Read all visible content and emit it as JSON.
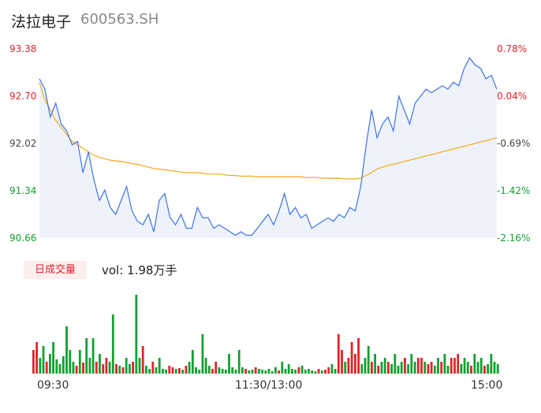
{
  "header": {
    "name": "法拉电子",
    "code": "600563.SH"
  },
  "price_axis": {
    "labels": [
      "93.38",
      "92.70",
      "92.02",
      "91.34",
      "90.66"
    ],
    "min": 90.66,
    "max": 93.38
  },
  "pct_axis": {
    "labels": [
      "0.78%",
      "0.04%",
      "-0.69%",
      "-1.42%",
      "-2.16%"
    ]
  },
  "volume": {
    "tag": "日成交量",
    "text": "vol: 1.98万手"
  },
  "time_axis": {
    "labels": [
      "09:30",
      "11:30/13:00",
      "15:00"
    ]
  },
  "colors": {
    "price": "#3f73e6",
    "avg": "#f4a81c",
    "up": "#e0242b",
    "down": "#12a031",
    "fill": "#eef3fb"
  },
  "chart_data": {
    "type": "line",
    "x_range": [
      "09:30",
      "15:00"
    ],
    "ylim": [
      90.66,
      93.38
    ],
    "series": [
      {
        "values": [
          92.95,
          92.8,
          92.4,
          92.6,
          92.3,
          92.2,
          92.0,
          92.05,
          91.6,
          91.9,
          91.5,
          91.2,
          91.35,
          91.1,
          91.0,
          91.2,
          91.4,
          91.05,
          90.9,
          90.85,
          91.0,
          90.75,
          91.2,
          91.3,
          90.95,
          90.85,
          91.0,
          90.8,
          90.8,
          91.1,
          90.95,
          90.95,
          90.8,
          90.85,
          90.8,
          90.75,
          90.7,
          90.75,
          90.7,
          90.7,
          90.8,
          90.9,
          91.0,
          90.85,
          91.05,
          91.3,
          91.0,
          91.1,
          90.95,
          91.0,
          90.8,
          90.85,
          90.9,
          90.95,
          90.9,
          91.0,
          90.95,
          91.1,
          91.05,
          91.4,
          92.0,
          92.5,
          92.1,
          92.3,
          92.4,
          92.2,
          92.7,
          92.5,
          92.3,
          92.6,
          92.7,
          92.8,
          92.75,
          92.8,
          92.85,
          92.8,
          92.9,
          92.85,
          93.1,
          93.25,
          93.15,
          93.1,
          92.95,
          93.0,
          92.8
        ],
        "color": "#3f73e6"
      },
      {
        "values": [
          92.9,
          92.65,
          92.5,
          92.35,
          92.25,
          92.15,
          92.05,
          92.0,
          91.95,
          91.9,
          91.85,
          91.82,
          91.8,
          91.78,
          91.77,
          91.76,
          91.75,
          91.73,
          91.72,
          91.7,
          91.68,
          91.66,
          91.65,
          91.64,
          91.63,
          91.62,
          91.61,
          91.6,
          91.6,
          91.6,
          91.59,
          91.58,
          91.58,
          91.58,
          91.57,
          91.56,
          91.56,
          91.55,
          91.55,
          91.55,
          91.54,
          91.54,
          91.54,
          91.54,
          91.54,
          91.54,
          91.54,
          91.54,
          91.54,
          91.53,
          91.53,
          91.53,
          91.52,
          91.52,
          91.52,
          91.52,
          91.51,
          91.51,
          91.51,
          91.52,
          91.56,
          91.6,
          91.65,
          91.68,
          91.7,
          91.72,
          91.74,
          91.76,
          91.78,
          91.8,
          91.82,
          91.84,
          91.86,
          91.88,
          91.9,
          91.92,
          91.94,
          91.96,
          91.98,
          92.0,
          92.02,
          92.04,
          92.06,
          92.08,
          92.1
        ],
        "color": "#f4a81c"
      }
    ],
    "volume_bars": [
      [
        30,
        "up"
      ],
      [
        40,
        "up"
      ],
      [
        20,
        "down"
      ],
      [
        35,
        "down"
      ],
      [
        15,
        "up"
      ],
      [
        25,
        "down"
      ],
      [
        40,
        "down"
      ],
      [
        18,
        "down"
      ],
      [
        12,
        "down"
      ],
      [
        22,
        "down"
      ],
      [
        60,
        "down"
      ],
      [
        30,
        "down"
      ],
      [
        15,
        "down"
      ],
      [
        10,
        "up"
      ],
      [
        30,
        "down"
      ],
      [
        14,
        "up"
      ],
      [
        45,
        "down"
      ],
      [
        20,
        "down"
      ],
      [
        45,
        "down"
      ],
      [
        15,
        "up"
      ],
      [
        25,
        "down"
      ],
      [
        12,
        "up"
      ],
      [
        20,
        "up"
      ],
      [
        15,
        "down"
      ],
      [
        75,
        "down"
      ],
      [
        12,
        "up"
      ],
      [
        10,
        "down"
      ],
      [
        8,
        "up"
      ],
      [
        20,
        "down"
      ],
      [
        12,
        "down"
      ],
      [
        15,
        "up"
      ],
      [
        100,
        "down"
      ],
      [
        20,
        "down"
      ],
      [
        35,
        "up"
      ],
      [
        10,
        "down"
      ],
      [
        6,
        "down"
      ],
      [
        15,
        "up"
      ],
      [
        8,
        "down"
      ],
      [
        20,
        "down"
      ],
      [
        6,
        "down"
      ],
      [
        5,
        "down"
      ],
      [
        10,
        "up"
      ],
      [
        8,
        "up"
      ],
      [
        6,
        "down"
      ],
      [
        7,
        "up"
      ],
      [
        5,
        "down"
      ],
      [
        10,
        "up"
      ],
      [
        15,
        "down"
      ],
      [
        30,
        "down"
      ],
      [
        8,
        "down"
      ],
      [
        5,
        "down"
      ],
      [
        50,
        "down"
      ],
      [
        20,
        "down"
      ],
      [
        10,
        "down"
      ],
      [
        6,
        "up"
      ],
      [
        15,
        "up"
      ],
      [
        8,
        "down"
      ],
      [
        6,
        "down"
      ],
      [
        5,
        "down"
      ],
      [
        25,
        "down"
      ],
      [
        8,
        "down"
      ],
      [
        5,
        "down"
      ],
      [
        30,
        "down"
      ],
      [
        8,
        "down"
      ],
      [
        6,
        "up"
      ],
      [
        4,
        "down"
      ],
      [
        5,
        "down"
      ],
      [
        8,
        "up"
      ],
      [
        6,
        "down"
      ],
      [
        5,
        "down"
      ],
      [
        4,
        "down"
      ],
      [
        6,
        "down"
      ],
      [
        3,
        "down"
      ],
      [
        8,
        "down"
      ],
      [
        4,
        "up"
      ],
      [
        15,
        "down"
      ],
      [
        6,
        "down"
      ],
      [
        12,
        "down"
      ],
      [
        6,
        "down"
      ],
      [
        5,
        "down"
      ],
      [
        8,
        "up"
      ],
      [
        10,
        "down"
      ],
      [
        5,
        "down"
      ],
      [
        6,
        "down"
      ],
      [
        4,
        "down"
      ],
      [
        3,
        "down"
      ],
      [
        6,
        "up"
      ],
      [
        4,
        "down"
      ],
      [
        5,
        "up"
      ],
      [
        8,
        "up"
      ],
      [
        12,
        "down"
      ],
      [
        6,
        "down"
      ],
      [
        50,
        "up"
      ],
      [
        30,
        "up"
      ],
      [
        15,
        "down"
      ],
      [
        20,
        "up"
      ],
      [
        40,
        "up"
      ],
      [
        25,
        "up"
      ],
      [
        45,
        "up"
      ],
      [
        12,
        "down"
      ],
      [
        20,
        "down"
      ],
      [
        35,
        "down"
      ],
      [
        15,
        "up"
      ],
      [
        25,
        "down"
      ],
      [
        10,
        "up"
      ],
      [
        15,
        "down"
      ],
      [
        20,
        "down"
      ],
      [
        15,
        "up"
      ],
      [
        12,
        "down"
      ],
      [
        25,
        "down"
      ],
      [
        10,
        "down"
      ],
      [
        15,
        "down"
      ],
      [
        20,
        "up"
      ],
      [
        12,
        "down"
      ],
      [
        25,
        "down"
      ],
      [
        15,
        "down"
      ],
      [
        20,
        "up"
      ],
      [
        20,
        "up"
      ],
      [
        15,
        "down"
      ],
      [
        12,
        "up"
      ],
      [
        15,
        "up"
      ],
      [
        10,
        "down"
      ],
      [
        20,
        "down"
      ],
      [
        15,
        "up"
      ],
      [
        25,
        "down"
      ],
      [
        10,
        "down"
      ],
      [
        20,
        "up"
      ],
      [
        20,
        "up"
      ],
      [
        25,
        "up"
      ],
      [
        12,
        "down"
      ],
      [
        20,
        "down"
      ],
      [
        15,
        "down"
      ],
      [
        10,
        "up"
      ],
      [
        25,
        "down"
      ],
      [
        15,
        "down"
      ],
      [
        20,
        "down"
      ],
      [
        10,
        "up"
      ],
      [
        12,
        "down"
      ],
      [
        25,
        "down"
      ],
      [
        15,
        "down"
      ],
      [
        12,
        "down"
      ]
    ]
  }
}
